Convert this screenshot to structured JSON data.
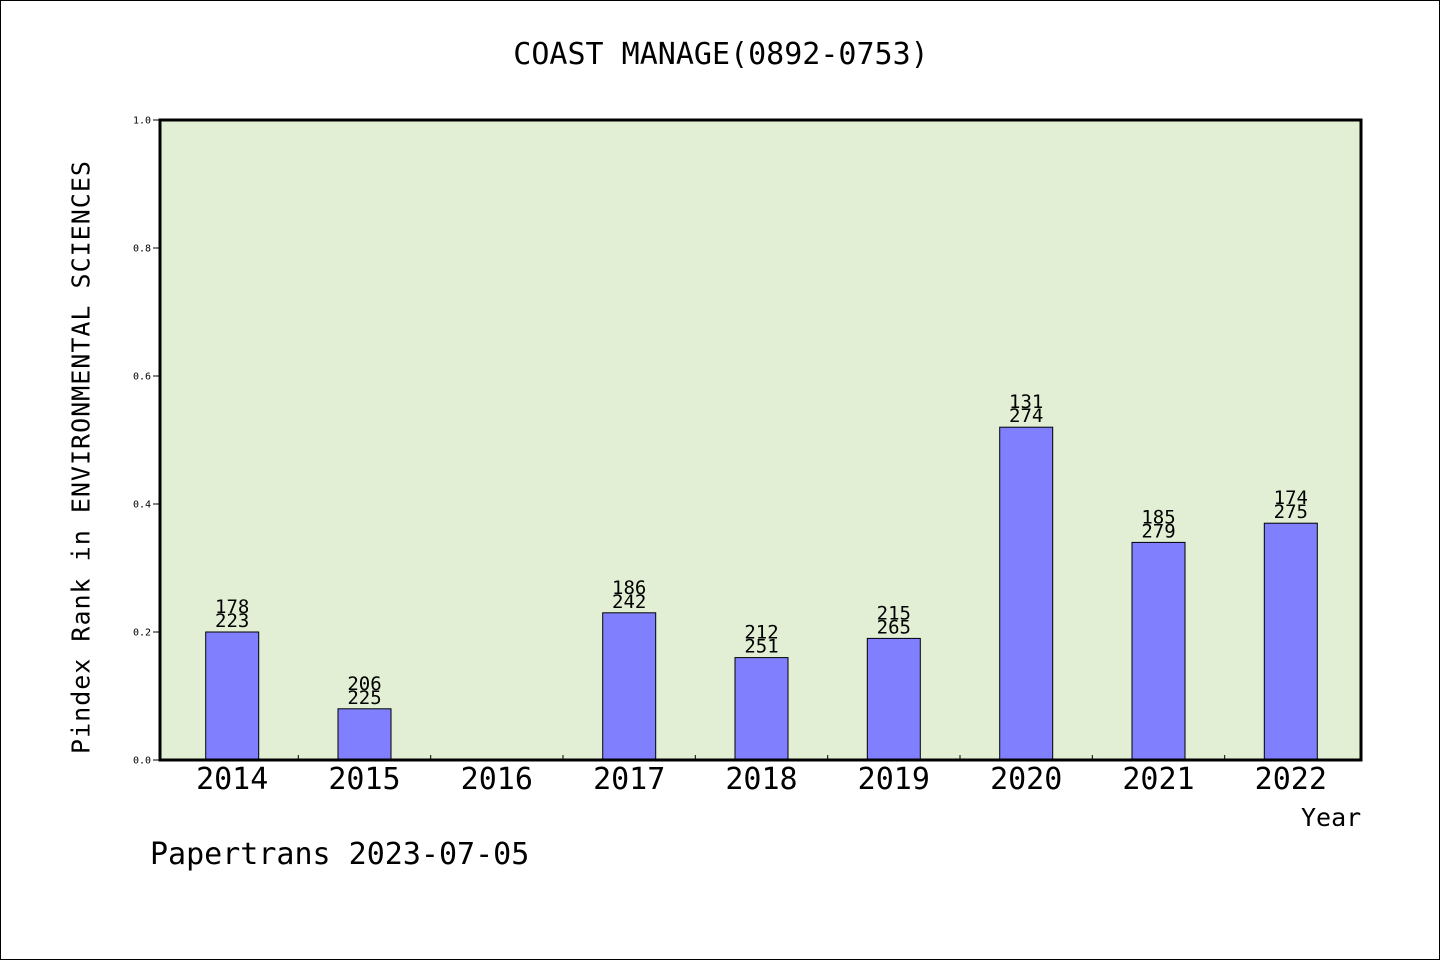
{
  "header": {
    "title": "COAST MANAGE(0892-0753)"
  },
  "footer": {
    "text": "Papertrans 2023-07-05"
  },
  "colors": {
    "plot_bg": "#e2efd5",
    "bar_fill": "#8080ff",
    "bar_stroke": "#000000"
  },
  "chart_data": {
    "type": "bar",
    "categories": [
      "2014",
      "2015",
      "2016",
      "2017",
      "2018",
      "2019",
      "2020",
      "2021",
      "2022"
    ],
    "values": [
      0.2,
      0.08,
      null,
      0.23,
      0.16,
      0.19,
      0.52,
      0.34,
      0.37
    ],
    "labels_top": [
      "178",
      "206",
      "",
      "186",
      "212",
      "215",
      "131",
      "185",
      "174"
    ],
    "labels_bottom": [
      "223",
      "225",
      "",
      "242",
      "251",
      "265",
      "274",
      "279",
      "275"
    ],
    "xlabel": "Year",
    "ylabel": "Pindex Rank in ENVIRONMENTAL SCIENCES",
    "ylim": [
      0,
      1.0
    ],
    "yticks": [
      "0.0",
      "0.2",
      "0.4",
      "0.6",
      "0.8",
      "1.0"
    ],
    "grid": false,
    "legend": "none"
  }
}
